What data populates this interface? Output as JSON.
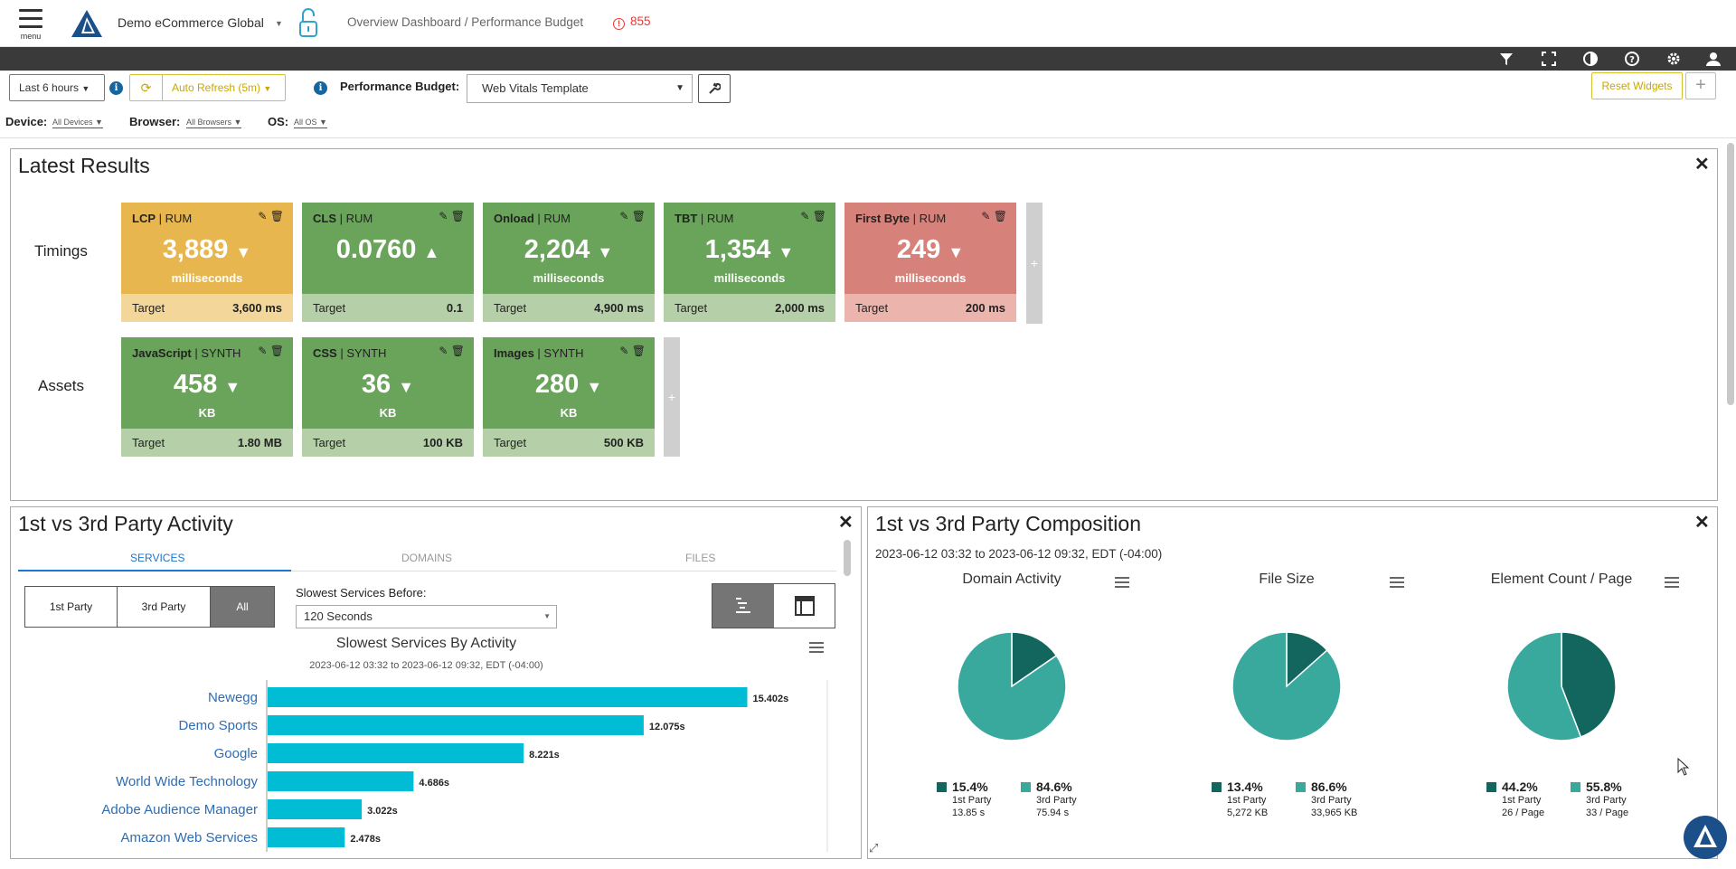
{
  "header": {
    "menu_label": "menu",
    "site_name": "Demo eCommerce Global",
    "breadcrumb": "Overview Dashboard / Performance Budget",
    "alert_count": "855"
  },
  "controls": {
    "time_range": "Last 6 hours",
    "auto_refresh": "Auto Refresh (5m)",
    "budget_label": "Performance Budget:",
    "budget_value": "Web Vitals Template",
    "reset_widgets": "Reset Widgets",
    "add_symbol": "+"
  },
  "filters": {
    "device_label": "Device:",
    "device_value": "All Devices",
    "browser_label": "Browser:",
    "browser_value": "All Browsers",
    "os_label": "OS:",
    "os_value": "All OS"
  },
  "latest_results": {
    "title": "Latest Results",
    "timings_label": "Timings",
    "assets_label": "Assets",
    "timings": [
      {
        "name": "LCP",
        "source": "RUM",
        "value": "3,889",
        "arrow": "▼",
        "unit": "milliseconds",
        "target_label": "Target",
        "target": "3,600 ms",
        "status": "yellow"
      },
      {
        "name": "CLS",
        "source": "RUM",
        "value": "0.0760",
        "arrow": "▲",
        "unit": "",
        "target_label": "Target",
        "target": "0.1",
        "status": "green"
      },
      {
        "name": "Onload",
        "source": "RUM",
        "value": "2,204",
        "arrow": "▼",
        "unit": "milliseconds",
        "target_label": "Target",
        "target": "4,900 ms",
        "status": "green"
      },
      {
        "name": "TBT",
        "source": "RUM",
        "value": "1,354",
        "arrow": "▼",
        "unit": "milliseconds",
        "target_label": "Target",
        "target": "2,000 ms",
        "status": "green"
      },
      {
        "name": "First Byte",
        "source": "RUM",
        "value": "249",
        "arrow": "▼",
        "unit": "milliseconds",
        "target_label": "Target",
        "target": "200 ms",
        "status": "red"
      }
    ],
    "assets": [
      {
        "name": "JavaScript",
        "source": "SYNTH",
        "value": "458",
        "arrow": "▼",
        "unit": "KB",
        "target_label": "Target",
        "target": "1.80 MB",
        "status": "green"
      },
      {
        "name": "CSS",
        "source": "SYNTH",
        "value": "36",
        "arrow": "▼",
        "unit": "KB",
        "target_label": "Target",
        "target": "100 KB",
        "status": "green"
      },
      {
        "name": "Images",
        "source": "SYNTH",
        "value": "280",
        "arrow": "▼",
        "unit": "KB",
        "target_label": "Target",
        "target": "500 KB",
        "status": "green"
      }
    ]
  },
  "activity": {
    "title": "1st vs 3rd Party Activity",
    "tabs": [
      "SERVICES",
      "DOMAINS",
      "FILES"
    ],
    "segments": [
      "1st Party",
      "3rd Party",
      "All"
    ],
    "slowest_label": "Slowest Services Before:",
    "slowest_value": "120 Seconds",
    "chart_title": "Slowest Services By Activity",
    "chart_subtitle": "2023-06-12 03:32 to 2023-06-12 09:32, EDT (-04:00)"
  },
  "composition": {
    "title": "1st vs 3rd Party Composition",
    "range": "2023-06-12 03:32 to 2023-06-12 09:32, EDT (-04:00)",
    "first_label": "1st Party",
    "third_label": "3rd Party",
    "pies": [
      {
        "title": "Domain Activity",
        "first_pct": "15.4%",
        "third_pct": "84.6%",
        "first_sub": "13.85 s",
        "third_sub": "75.94 s"
      },
      {
        "title": "File Size",
        "first_pct": "13.4%",
        "third_pct": "86.6%",
        "first_sub": "5,272 KB",
        "third_sub": "33,965 KB"
      },
      {
        "title": "Element Count / Page",
        "first_pct": "44.2%",
        "third_pct": "55.8%",
        "first_sub": "26 / Page",
        "third_sub": "33 / Page"
      }
    ]
  },
  "colors": {
    "bar": "#00bcd4",
    "first_party": "#12665e",
    "third_party": "#39a99e",
    "link": "#2f6db3"
  },
  "chart_data": [
    {
      "type": "bar",
      "orientation": "horizontal",
      "title": "Slowest Services By Activity",
      "subtitle": "2023-06-12 03:32 to 2023-06-12 09:32, EDT (-04:00)",
      "categories": [
        "Newegg",
        "Demo Sports",
        "Google",
        "World Wide Technology",
        "Adobe Audience Manager",
        "Amazon Web Services"
      ],
      "values": [
        15.402,
        12.075,
        8.221,
        4.686,
        3.022,
        2.478
      ],
      "value_labels": [
        "15.402s",
        "12.075s",
        "8.221s",
        "4.686s",
        "3.022s",
        "2.478s"
      ],
      "xlim": [
        0,
        18
      ]
    },
    {
      "type": "pie",
      "title": "Domain Activity",
      "labels": [
        "1st Party",
        "3rd Party"
      ],
      "values": [
        15.4,
        84.6
      ]
    },
    {
      "type": "pie",
      "title": "File Size",
      "labels": [
        "1st Party",
        "3rd Party"
      ],
      "values": [
        13.4,
        86.6
      ]
    },
    {
      "type": "pie",
      "title": "Element Count / Page",
      "labels": [
        "1st Party",
        "3rd Party"
      ],
      "values": [
        44.2,
        55.8
      ]
    }
  ]
}
